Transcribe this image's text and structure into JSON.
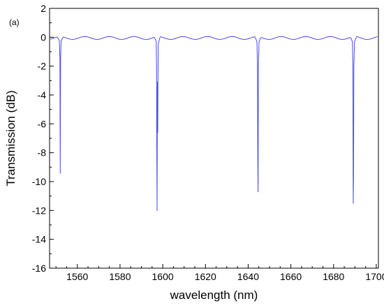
{
  "chart_data": {
    "type": "line",
    "panel_label": "(a)",
    "xlabel": "wavelength (nm)",
    "ylabel": "Transmission (dB)",
    "xlim": [
      1547,
      1701
    ],
    "ylim": [
      -16,
      2
    ],
    "x_ticks": [
      1560,
      1580,
      1600,
      1620,
      1640,
      1660,
      1680,
      1700
    ],
    "y_ticks": [
      2,
      0,
      -2,
      -4,
      -6,
      -8,
      -10,
      -12,
      -14,
      -16
    ],
    "grid": false,
    "line_color": "#4a4aee",
    "baseline": {
      "level_db": -0.05,
      "ripple_amplitude_db": 0.1,
      "ripple_period_nm": 11.5
    },
    "resonance_dips": [
      {
        "center_nm": 1552.0,
        "depth_db": -9.4,
        "points": [
          [
            1550.9,
            -0.05
          ],
          [
            1551.6,
            -0.25
          ],
          [
            1551.85,
            -1.5
          ],
          [
            1552.0,
            -9.4
          ],
          [
            1552.15,
            -1.5
          ],
          [
            1552.4,
            -0.25
          ],
          [
            1553.1,
            -0.05
          ]
        ]
      },
      {
        "center_nm": 1597.3,
        "depth_db": -12.0,
        "points": [
          [
            1596.2,
            -0.05
          ],
          [
            1596.9,
            -0.25
          ],
          [
            1597.1,
            -2.0
          ],
          [
            1597.2,
            -7.4
          ],
          [
            1597.35,
            -12.0
          ],
          [
            1597.5,
            -3.1
          ],
          [
            1597.65,
            -6.6
          ],
          [
            1597.85,
            -0.5
          ],
          [
            1598.6,
            -0.05
          ]
        ]
      },
      {
        "center_nm": 1644.6,
        "depth_db": -10.7,
        "points": [
          [
            1643.4,
            -0.05
          ],
          [
            1644.1,
            -0.3
          ],
          [
            1644.35,
            -2.0
          ],
          [
            1644.5,
            -8.6
          ],
          [
            1644.65,
            -10.7
          ],
          [
            1644.8,
            -2.0
          ],
          [
            1645.1,
            -0.3
          ],
          [
            1645.8,
            -0.05
          ]
        ]
      },
      {
        "center_nm": 1689.2,
        "depth_db": -11.5,
        "points": [
          [
            1688.1,
            -0.05
          ],
          [
            1688.8,
            -0.3
          ],
          [
            1689.05,
            -2.0
          ],
          [
            1689.2,
            -11.5
          ],
          [
            1689.35,
            -9.8
          ],
          [
            1689.5,
            -2.0
          ],
          [
            1689.8,
            -0.3
          ],
          [
            1690.5,
            -0.05
          ]
        ]
      }
    ]
  }
}
